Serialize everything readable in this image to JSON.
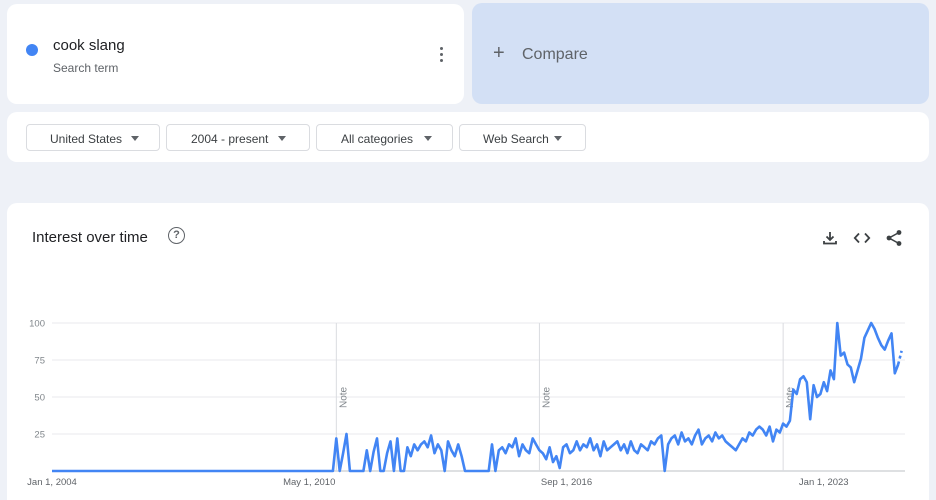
{
  "search_term": {
    "name": "cook slang",
    "subtitle": "Search term",
    "color": "#4285f4"
  },
  "compare": {
    "label": "Compare"
  },
  "filters": [
    {
      "label": "United States"
    },
    {
      "label": "2004 - present"
    },
    {
      "label": "All categories"
    },
    {
      "label": "Web Search"
    }
  ],
  "chart": {
    "title": "Interest over time",
    "icons": [
      "download-icon",
      "embed-code-icon",
      "share-icon"
    ],
    "note_label": "Note"
  },
  "chart_data": {
    "type": "line",
    "title": "Interest over time",
    "xlabel": "",
    "ylabel": "",
    "ylim": [
      0,
      100
    ],
    "yticks": [
      25,
      50,
      75,
      100
    ],
    "xtick_labels": [
      "Jan 1, 2004",
      "May 1, 2010",
      "Sep 1, 2016",
      "Jan 1, 2023"
    ],
    "grid": true,
    "notes": [
      "2011-01",
      "2016-01",
      "2022-01"
    ],
    "series": [
      {
        "name": "cook slang",
        "color": "#4285f4",
        "points": [
          [
            "2004-01",
            0
          ],
          [
            "2010-12",
            0
          ],
          [
            "2011-01",
            22
          ],
          [
            "2011-02",
            0
          ],
          [
            "2011-03",
            12
          ],
          [
            "2011-04",
            25
          ],
          [
            "2011-05",
            0
          ],
          [
            "2011-06",
            0
          ],
          [
            "2011-07",
            0
          ],
          [
            "2011-08",
            0
          ],
          [
            "2011-09",
            0
          ],
          [
            "2011-10",
            14
          ],
          [
            "2011-11",
            0
          ],
          [
            "2011-12",
            13
          ],
          [
            "2012-01",
            22
          ],
          [
            "2012-02",
            0
          ],
          [
            "2012-03",
            0
          ],
          [
            "2012-04",
            12
          ],
          [
            "2012-05",
            20
          ],
          [
            "2012-06",
            0
          ],
          [
            "2012-07",
            22
          ],
          [
            "2012-08",
            0
          ],
          [
            "2012-09",
            0
          ],
          [
            "2012-10",
            16
          ],
          [
            "2012-11",
            10
          ],
          [
            "2012-12",
            18
          ],
          [
            "2013-01",
            14
          ],
          [
            "2013-02",
            18
          ],
          [
            "2013-03",
            20
          ],
          [
            "2013-04",
            16
          ],
          [
            "2013-05",
            24
          ],
          [
            "2013-06",
            12
          ],
          [
            "2013-07",
            18
          ],
          [
            "2013-08",
            14
          ],
          [
            "2013-09",
            0
          ],
          [
            "2013-10",
            20
          ],
          [
            "2013-11",
            14
          ],
          [
            "2013-12",
            10
          ],
          [
            "2014-01",
            18
          ],
          [
            "2014-02",
            10
          ],
          [
            "2014-03",
            0
          ],
          [
            "2014-04",
            0
          ],
          [
            "2014-05",
            0
          ],
          [
            "2014-06",
            0
          ],
          [
            "2014-07",
            0
          ],
          [
            "2014-08",
            0
          ],
          [
            "2014-09",
            0
          ],
          [
            "2014-10",
            0
          ],
          [
            "2014-11",
            18
          ],
          [
            "2014-12",
            0
          ],
          [
            "2015-01",
            14
          ],
          [
            "2015-02",
            16
          ],
          [
            "2015-03",
            12
          ],
          [
            "2015-04",
            18
          ],
          [
            "2015-05",
            16
          ],
          [
            "2015-06",
            22
          ],
          [
            "2015-07",
            10
          ],
          [
            "2015-08",
            18
          ],
          [
            "2015-09",
            14
          ],
          [
            "2015-10",
            12
          ],
          [
            "2015-11",
            22
          ],
          [
            "2015-12",
            18
          ],
          [
            "2016-01",
            14
          ],
          [
            "2016-02",
            12
          ],
          [
            "2016-03",
            8
          ],
          [
            "2016-04",
            16
          ],
          [
            "2016-05",
            6
          ],
          [
            "2016-06",
            10
          ],
          [
            "2016-07",
            2
          ],
          [
            "2016-08",
            16
          ],
          [
            "2016-09",
            18
          ],
          [
            "2016-10",
            12
          ],
          [
            "2016-11",
            14
          ],
          [
            "2016-12",
            20
          ],
          [
            "2017-01",
            14
          ],
          [
            "2017-02",
            18
          ],
          [
            "2017-03",
            16
          ],
          [
            "2017-04",
            22
          ],
          [
            "2017-05",
            14
          ],
          [
            "2017-06",
            18
          ],
          [
            "2017-07",
            10
          ],
          [
            "2017-08",
            20
          ],
          [
            "2017-09",
            14
          ],
          [
            "2017-10",
            16
          ],
          [
            "2017-11",
            18
          ],
          [
            "2017-12",
            20
          ],
          [
            "2018-01",
            14
          ],
          [
            "2018-02",
            18
          ],
          [
            "2018-03",
            12
          ],
          [
            "2018-04",
            20
          ],
          [
            "2018-05",
            14
          ],
          [
            "2018-06",
            12
          ],
          [
            "2018-07",
            18
          ],
          [
            "2018-08",
            16
          ],
          [
            "2018-09",
            14
          ],
          [
            "2018-10",
            20
          ],
          [
            "2018-11",
            18
          ],
          [
            "2018-12",
            22
          ],
          [
            "2019-01",
            24
          ],
          [
            "2019-02",
            0
          ],
          [
            "2019-03",
            18
          ],
          [
            "2019-04",
            22
          ],
          [
            "2019-05",
            24
          ],
          [
            "2019-06",
            18
          ],
          [
            "2019-07",
            26
          ],
          [
            "2019-08",
            20
          ],
          [
            "2019-09",
            22
          ],
          [
            "2019-10",
            18
          ],
          [
            "2019-11",
            24
          ],
          [
            "2019-12",
            28
          ],
          [
            "2020-01",
            18
          ],
          [
            "2020-02",
            22
          ],
          [
            "2020-03",
            24
          ],
          [
            "2020-04",
            20
          ],
          [
            "2020-05",
            26
          ],
          [
            "2020-06",
            22
          ],
          [
            "2020-07",
            24
          ],
          [
            "2020-08",
            20
          ],
          [
            "2020-09",
            18
          ],
          [
            "2020-10",
            16
          ],
          [
            "2020-11",
            14
          ],
          [
            "2020-12",
            18
          ],
          [
            "2021-01",
            22
          ],
          [
            "2021-02",
            20
          ],
          [
            "2021-03",
            26
          ],
          [
            "2021-04",
            24
          ],
          [
            "2021-05",
            28
          ],
          [
            "2021-06",
            30
          ],
          [
            "2021-07",
            28
          ],
          [
            "2021-08",
            24
          ],
          [
            "2021-09",
            30
          ],
          [
            "2021-10",
            20
          ],
          [
            "2021-11",
            28
          ],
          [
            "2021-12",
            26
          ],
          [
            "2022-01",
            32
          ],
          [
            "2022-02",
            30
          ],
          [
            "2022-03",
            34
          ],
          [
            "2022-04",
            55
          ],
          [
            "2022-05",
            52
          ],
          [
            "2022-06",
            62
          ],
          [
            "2022-07",
            64
          ],
          [
            "2022-08",
            60
          ],
          [
            "2022-09",
            35
          ],
          [
            "2022-10",
            58
          ],
          [
            "2022-11",
            50
          ],
          [
            "2022-12",
            52
          ],
          [
            "2023-01",
            60
          ],
          [
            "2023-02",
            54
          ],
          [
            "2023-03",
            68
          ],
          [
            "2023-04",
            62
          ],
          [
            "2023-05",
            100
          ],
          [
            "2023-06",
            78
          ],
          [
            "2023-07",
            80
          ],
          [
            "2023-08",
            72
          ],
          [
            "2023-09",
            70
          ],
          [
            "2023-10",
            60
          ],
          [
            "2023-11",
            68
          ],
          [
            "2023-12",
            76
          ],
          [
            "2024-01",
            90
          ],
          [
            "2024-02",
            95
          ],
          [
            "2024-03",
            100
          ],
          [
            "2024-04",
            96
          ],
          [
            "2024-05",
            90
          ],
          [
            "2024-06",
            85
          ],
          [
            "2024-07",
            82
          ],
          [
            "2024-08",
            88
          ],
          [
            "2024-09",
            93
          ],
          [
            "2024-10",
            66
          ],
          [
            "2024-11",
            72
          ],
          [
            "2024-12",
            88
          ]
        ]
      }
    ]
  }
}
